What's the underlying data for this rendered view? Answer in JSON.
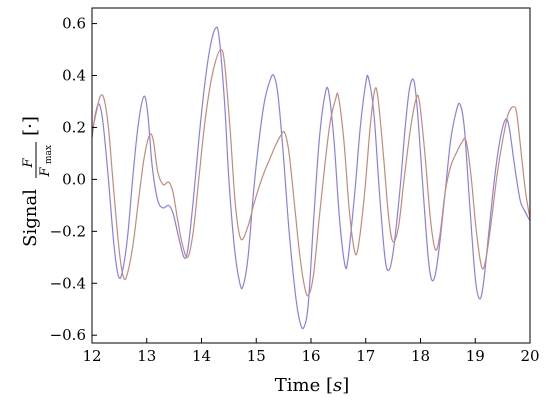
{
  "chart_data": {
    "type": "line",
    "title": "",
    "xlabel": "Time [s]",
    "xlabel_main": "Time",
    "xlabel_unit": "s",
    "ylabel": "Signal F/F_max [·]",
    "ylabel_main": "Signal",
    "ylabel_frac_num": "F",
    "ylabel_frac_den": "F",
    "ylabel_frac_sub": "max",
    "ylabel_unit": "·",
    "xlim": [
      12,
      20
    ],
    "ylim": [
      -0.63,
      0.66
    ],
    "grid": false,
    "legend": "none",
    "x_ticks": [
      12,
      13,
      14,
      15,
      16,
      17,
      18,
      19,
      20
    ],
    "x_tick_labels": [
      "12",
      "13",
      "14",
      "15",
      "16",
      "17",
      "18",
      "19",
      "20"
    ],
    "y_ticks": [
      -0.6,
      -0.4,
      -0.2,
      0.0,
      0.2,
      0.4,
      0.6
    ],
    "y_tick_labels": [
      "−0.6",
      "−0.4",
      "−0.2",
      "0.0",
      "0.2",
      "0.4",
      "0.6"
    ],
    "series": [
      {
        "color": "#8a7ee8",
        "points": [
          [
            12.0,
            0.16
          ],
          [
            12.06,
            0.25
          ],
          [
            12.13,
            0.29
          ],
          [
            12.2,
            0.22
          ],
          [
            12.3,
            0.0
          ],
          [
            12.4,
            -0.25
          ],
          [
            12.48,
            -0.37
          ],
          [
            12.55,
            -0.36
          ],
          [
            12.65,
            -0.22
          ],
          [
            12.75,
            0.02
          ],
          [
            12.85,
            0.22
          ],
          [
            12.95,
            0.32
          ],
          [
            13.02,
            0.25
          ],
          [
            13.1,
            0.05
          ],
          [
            13.2,
            -0.08
          ],
          [
            13.3,
            -0.11
          ],
          [
            13.4,
            -0.1
          ],
          [
            13.48,
            -0.13
          ],
          [
            13.58,
            -0.22
          ],
          [
            13.68,
            -0.3
          ],
          [
            13.75,
            -0.27
          ],
          [
            13.85,
            -0.08
          ],
          [
            13.95,
            0.15
          ],
          [
            14.05,
            0.35
          ],
          [
            14.15,
            0.5
          ],
          [
            14.25,
            0.58
          ],
          [
            14.32,
            0.55
          ],
          [
            14.42,
            0.3
          ],
          [
            14.5,
            0.0
          ],
          [
            14.6,
            -0.26
          ],
          [
            14.7,
            -0.4
          ],
          [
            14.76,
            -0.41
          ],
          [
            14.85,
            -0.3
          ],
          [
            14.95,
            -0.05
          ],
          [
            15.05,
            0.15
          ],
          [
            15.15,
            0.3
          ],
          [
            15.25,
            0.38
          ],
          [
            15.32,
            0.4
          ],
          [
            15.4,
            0.32
          ],
          [
            15.5,
            0.08
          ],
          [
            15.6,
            -0.2
          ],
          [
            15.72,
            -0.45
          ],
          [
            15.8,
            -0.55
          ],
          [
            15.87,
            -0.57
          ],
          [
            15.95,
            -0.48
          ],
          [
            16.05,
            -0.15
          ],
          [
            16.15,
            0.15
          ],
          [
            16.25,
            0.32
          ],
          [
            16.32,
            0.34
          ],
          [
            16.42,
            0.15
          ],
          [
            16.52,
            -0.15
          ],
          [
            16.62,
            -0.33
          ],
          [
            16.68,
            -0.3
          ],
          [
            16.8,
            -0.05
          ],
          [
            16.9,
            0.2
          ],
          [
            17.0,
            0.37
          ],
          [
            17.05,
            0.39
          ],
          [
            17.15,
            0.25
          ],
          [
            17.25,
            -0.05
          ],
          [
            17.35,
            -0.3
          ],
          [
            17.42,
            -0.35
          ],
          [
            17.5,
            -0.28
          ],
          [
            17.62,
            -0.05
          ],
          [
            17.72,
            0.2
          ],
          [
            17.8,
            0.35
          ],
          [
            17.88,
            0.38
          ],
          [
            17.95,
            0.25
          ],
          [
            18.05,
            -0.05
          ],
          [
            18.15,
            -0.32
          ],
          [
            18.23,
            -0.39
          ],
          [
            18.32,
            -0.3
          ],
          [
            18.45,
            -0.05
          ],
          [
            18.55,
            0.15
          ],
          [
            18.65,
            0.26
          ],
          [
            18.72,
            0.29
          ],
          [
            18.8,
            0.2
          ],
          [
            18.9,
            -0.1
          ],
          [
            19.0,
            -0.38
          ],
          [
            19.08,
            -0.46
          ],
          [
            19.15,
            -0.4
          ],
          [
            19.25,
            -0.2
          ],
          [
            19.35,
            0.0
          ],
          [
            19.45,
            0.15
          ],
          [
            19.55,
            0.23
          ],
          [
            19.62,
            0.2
          ],
          [
            19.72,
            0.05
          ],
          [
            19.82,
            -0.08
          ],
          [
            19.9,
            -0.12
          ],
          [
            20.0,
            -0.16
          ]
        ]
      },
      {
        "color": "#c48a7a",
        "points": [
          [
            12.0,
            0.18
          ],
          [
            12.08,
            0.26
          ],
          [
            12.15,
            0.32
          ],
          [
            12.22,
            0.31
          ],
          [
            12.3,
            0.2
          ],
          [
            12.4,
            -0.05
          ],
          [
            12.5,
            -0.28
          ],
          [
            12.58,
            -0.38
          ],
          [
            12.65,
            -0.36
          ],
          [
            12.75,
            -0.25
          ],
          [
            12.85,
            -0.08
          ],
          [
            12.95,
            0.08
          ],
          [
            13.05,
            0.17
          ],
          [
            13.12,
            0.15
          ],
          [
            13.2,
            0.03
          ],
          [
            13.3,
            -0.02
          ],
          [
            13.4,
            -0.01
          ],
          [
            13.48,
            -0.05
          ],
          [
            13.56,
            -0.15
          ],
          [
            13.65,
            -0.25
          ],
          [
            13.75,
            -0.3
          ],
          [
            13.85,
            -0.2
          ],
          [
            13.95,
            0.0
          ],
          [
            14.05,
            0.2
          ],
          [
            14.15,
            0.35
          ],
          [
            14.25,
            0.45
          ],
          [
            14.35,
            0.5
          ],
          [
            14.42,
            0.45
          ],
          [
            14.52,
            0.2
          ],
          [
            14.62,
            -0.1
          ],
          [
            14.72,
            -0.23
          ],
          [
            14.85,
            -0.18
          ],
          [
            14.95,
            -0.1
          ],
          [
            15.05,
            -0.03
          ],
          [
            15.15,
            0.03
          ],
          [
            15.25,
            0.08
          ],
          [
            15.35,
            0.13
          ],
          [
            15.45,
            0.17
          ],
          [
            15.52,
            0.18
          ],
          [
            15.6,
            0.1
          ],
          [
            15.7,
            -0.1
          ],
          [
            15.8,
            -0.3
          ],
          [
            15.9,
            -0.43
          ],
          [
            15.97,
            -0.44
          ],
          [
            16.05,
            -0.36
          ],
          [
            16.15,
            -0.15
          ],
          [
            16.25,
            0.05
          ],
          [
            16.35,
            0.22
          ],
          [
            16.45,
            0.31
          ],
          [
            16.5,
            0.32
          ],
          [
            16.6,
            0.15
          ],
          [
            16.7,
            -0.12
          ],
          [
            16.8,
            -0.28
          ],
          [
            16.87,
            -0.25
          ],
          [
            16.98,
            -0.05
          ],
          [
            17.08,
            0.2
          ],
          [
            17.16,
            0.34
          ],
          [
            17.22,
            0.32
          ],
          [
            17.32,
            0.1
          ],
          [
            17.42,
            -0.15
          ],
          [
            17.5,
            -0.24
          ],
          [
            17.6,
            -0.18
          ],
          [
            17.7,
            0.0
          ],
          [
            17.82,
            0.2
          ],
          [
            17.92,
            0.31
          ],
          [
            17.98,
            0.3
          ],
          [
            18.08,
            0.1
          ],
          [
            18.18,
            -0.15
          ],
          [
            18.27,
            -0.27
          ],
          [
            18.35,
            -0.22
          ],
          [
            18.45,
            -0.05
          ],
          [
            18.55,
            0.05
          ],
          [
            18.65,
            0.1
          ],
          [
            18.75,
            0.14
          ],
          [
            18.83,
            0.15
          ],
          [
            18.92,
            0.02
          ],
          [
            19.02,
            -0.2
          ],
          [
            19.12,
            -0.34
          ],
          [
            19.2,
            -0.3
          ],
          [
            19.3,
            -0.15
          ],
          [
            19.4,
            0.02
          ],
          [
            19.5,
            0.15
          ],
          [
            19.6,
            0.25
          ],
          [
            19.7,
            0.28
          ],
          [
            19.76,
            0.25
          ],
          [
            19.85,
            0.08
          ],
          [
            19.92,
            -0.05
          ],
          [
            20.0,
            -0.15
          ]
        ]
      }
    ]
  }
}
